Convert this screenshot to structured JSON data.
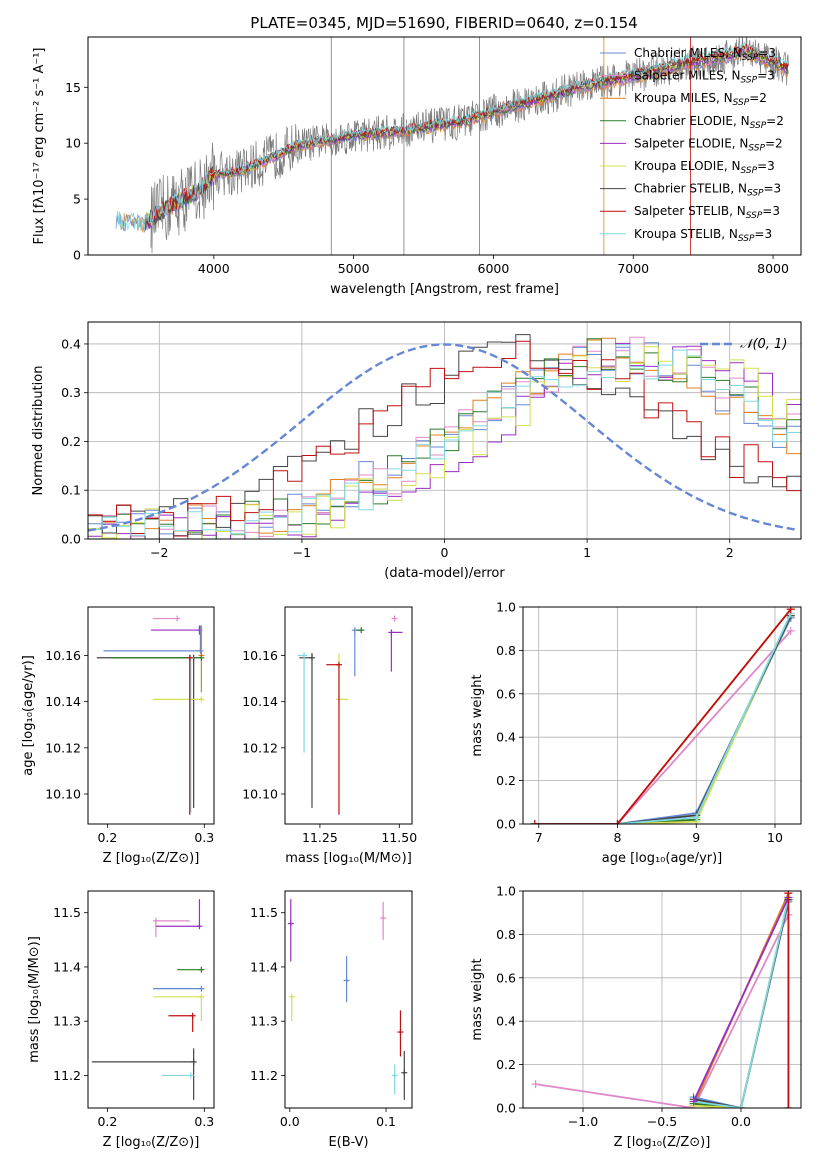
{
  "figure": {
    "title": "PLATE=0345, MJD=51690, FIBERID=0640, z=0.154"
  },
  "colors": {
    "chabrier_miles": "#6688d4",
    "salpeter_miles": "#e088c8",
    "kroupa_miles": "#e08020",
    "chabrier_elodie": "#2c7a2c",
    "salpeter_elodie": "#9a2fc0",
    "kroupa_elodie": "#d4e050",
    "chabrier_stelib": "#444444",
    "salpeter_stelib": "#c01010",
    "kroupa_stelib": "#80d8e0",
    "data_gray": "#7a7a7a",
    "normal_curve": "#6688d4"
  },
  "legend_spectrum": [
    {
      "label": "Chabrier MILES, N",
      "sub": "SSP",
      "suffix": "=3",
      "color_key": "chabrier_miles"
    },
    {
      "label": "Salpeter MILES, N",
      "sub": "SSP",
      "suffix": "=3",
      "color_key": "salpeter_miles"
    },
    {
      "label": "Kroupa MILES, N",
      "sub": "SSP",
      "suffix": "=2",
      "color_key": "kroupa_miles"
    },
    {
      "label": "Chabrier ELODIE, N",
      "sub": "SSP",
      "suffix": "=2",
      "color_key": "chabrier_elodie"
    },
    {
      "label": "Salpeter ELODIE, N",
      "sub": "SSP",
      "suffix": "=2",
      "color_key": "salpeter_elodie"
    },
    {
      "label": "Kroupa ELODIE, N",
      "sub": "SSP",
      "suffix": "=3",
      "color_key": "kroupa_elodie"
    },
    {
      "label": "Chabrier STELIB, N",
      "sub": "SSP",
      "suffix": "=3",
      "color_key": "chabrier_stelib"
    },
    {
      "label": "Salpeter STELIB, N",
      "sub": "SSP",
      "suffix": "=3",
      "color_key": "salpeter_stelib"
    },
    {
      "label": "Kroupa STELIB, N",
      "sub": "SSP",
      "suffix": "=3",
      "color_key": "kroupa_stelib"
    }
  ],
  "chart_data": [
    {
      "id": "spectrum",
      "type": "line",
      "xlabel": "wavelength [Angstrom, rest frame]",
      "ylabel": "Flux [fλ10⁻¹⁷ erg cm⁻² s⁻¹ A⁻¹]",
      "xlim": [
        3100,
        8200
      ],
      "ylim": [
        0,
        19.5
      ],
      "xticks": [
        4000,
        5000,
        6000,
        7000,
        8000
      ],
      "yticks": [
        0,
        5,
        10,
        15
      ],
      "grid": false,
      "legend": "right",
      "continuum_points": [
        [
          3300,
          3.1
        ],
        [
          3500,
          2.8
        ],
        [
          3700,
          4.5
        ],
        [
          3900,
          5.8
        ],
        [
          4000,
          7.2
        ],
        [
          4200,
          7.5
        ],
        [
          4400,
          8.6
        ],
        [
          4600,
          9.8
        ],
        [
          4800,
          10.2
        ],
        [
          5000,
          10.7
        ],
        [
          5200,
          10.9
        ],
        [
          5400,
          11.2
        ],
        [
          5600,
          11.6
        ],
        [
          5800,
          12.0
        ],
        [
          6000,
          12.8
        ],
        [
          6200,
          13.5
        ],
        [
          6400,
          14.2
        ],
        [
          6600,
          14.9
        ],
        [
          6800,
          15.5
        ],
        [
          7000,
          16.0
        ],
        [
          7200,
          16.6
        ],
        [
          7400,
          17.2
        ],
        [
          7600,
          17.6
        ],
        [
          7800,
          18.3
        ],
        [
          8000,
          17.2
        ],
        [
          8100,
          16.6
        ]
      ]
    },
    {
      "id": "residuals",
      "type": "histogram",
      "xlabel": "(data-model)/error",
      "ylabel": "Normed distribution",
      "xlim": [
        -2.5,
        2.5
      ],
      "ylim": [
        0,
        0.445
      ],
      "xticks": [
        -2,
        -1,
        0,
        1,
        2
      ],
      "yticks": [
        0.0,
        0.1,
        0.2,
        0.3,
        0.4
      ],
      "grid": true,
      "legend": "top-right",
      "legend_label": "𝒩(0, 1)",
      "normal": {
        "mean": 0,
        "sigma": 1
      }
    },
    {
      "id": "age-vs-Z",
      "type": "scatter",
      "xlabel": "Z [log₁₀(Z/Z⊙)]",
      "ylabel": "age  [log₁₀(age/yr)]",
      "xlim": [
        0.18,
        0.31
      ],
      "ylim": [
        10.087,
        10.181
      ],
      "xticks": [
        0.2,
        0.3
      ],
      "yticks": [
        10.1,
        10.12,
        10.14,
        10.16
      ],
      "grid": false,
      "points": [
        {
          "key": "salpeter_miles",
          "x": 0.272,
          "y": 10.176,
          "xerr": [
            0.025,
            0.0
          ],
          "yerr": [
            0.0,
            0.0
          ]
        },
        {
          "key": "salpeter_elodie",
          "x": 0.295,
          "y": 10.171,
          "xerr": [
            0.05,
            0.0
          ],
          "yerr": [
            0.002,
            0.002
          ]
        },
        {
          "key": "chabrier_miles",
          "x": 0.296,
          "y": 10.162,
          "xerr": [
            0.1,
            0.0
          ],
          "yerr": [
            0.0,
            0.011
          ]
        },
        {
          "key": "chabrier_stelib",
          "x": 0.289,
          "y": 10.159,
          "xerr": [
            0.1,
            0.0
          ],
          "yerr": [
            0.065,
            0.0
          ]
        },
        {
          "key": "kroupa_miles",
          "x": 0.297,
          "y": 10.16,
          "xerr": [
            0.0,
            0.0
          ],
          "yerr": [
            0.016,
            0.013
          ]
        },
        {
          "key": "chabrier_elodie",
          "x": 0.297,
          "y": 10.159,
          "xerr": [
            0.095,
            0.0
          ],
          "yerr": [
            0.0,
            0.0
          ]
        },
        {
          "key": "kroupa_elodie",
          "x": 0.297,
          "y": 10.141,
          "xerr": [
            0.05,
            0.0
          ],
          "yerr": [
            0.0,
            0.0
          ]
        },
        {
          "key": "kroupa_stelib",
          "x": 0.286,
          "y": 10.159,
          "xerr": [
            0.0,
            0.0
          ],
          "yerr": [
            0.067,
            0.0
          ]
        },
        {
          "key": "salpeter_stelib",
          "x": 0.285,
          "y": 10.159,
          "xerr": [
            0.0,
            0.0
          ],
          "yerr": [
            0.068,
            0.0
          ]
        }
      ]
    },
    {
      "id": "age-vs-mass",
      "type": "scatter",
      "xlabel": "mass [log₁₀(M/M⊙)]",
      "ylabel": "",
      "xlim": [
        11.14,
        11.54
      ],
      "ylim": [
        10.087,
        10.181
      ],
      "xticks": [
        11.25,
        11.5
      ],
      "yticks": [
        10.1,
        10.12,
        10.14,
        10.16
      ],
      "grid": false,
      "points": [
        {
          "key": "salpeter_miles",
          "x": 11.485,
          "y": 10.176,
          "xerr": [
            0.0,
            0.0
          ],
          "yerr": [
            0.0,
            0.0
          ]
        },
        {
          "key": "salpeter_elodie",
          "x": 11.475,
          "y": 10.17,
          "xerr": [
            0.0,
            0.035
          ],
          "yerr": [
            0.017,
            0.0
          ]
        },
        {
          "key": "chabrier_miles",
          "x": 11.36,
          "y": 10.171,
          "xerr": [
            0.0,
            0.03
          ],
          "yerr": [
            0.02,
            0.0
          ]
        },
        {
          "key": "chabrier_elodie",
          "x": 11.38,
          "y": 10.171,
          "xerr": [
            0.015,
            0.0
          ],
          "yerr": [
            0.0,
            0.0
          ]
        },
        {
          "key": "kroupa_elodie",
          "x": 11.31,
          "y": 10.141,
          "xerr": [
            0.0,
            0.03
          ],
          "yerr": [
            0.0,
            0.02
          ]
        },
        {
          "key": "chabrier_stelib",
          "x": 11.225,
          "y": 10.159,
          "xerr": [
            0.04,
            0.0
          ],
          "yerr": [
            0.065,
            0.002
          ]
        },
        {
          "key": "kroupa_stelib",
          "x": 11.2,
          "y": 10.16,
          "xerr": [
            0.02,
            0.0
          ],
          "yerr": [
            0.042,
            0.0
          ]
        },
        {
          "key": "salpeter_stelib",
          "x": 11.31,
          "y": 10.156,
          "xerr": [
            0.04,
            0.0
          ],
          "yerr": [
            0.065,
            0.0
          ]
        }
      ]
    },
    {
      "id": "mass-weight-vs-age",
      "type": "line",
      "xlabel": "age  [log₁₀(age/yr)]",
      "ylabel": "mass weight",
      "xlim": [
        6.8,
        10.33
      ],
      "ylim": [
        0,
        1.0
      ],
      "xticks": [
        7,
        8,
        9,
        10
      ],
      "yticks": [
        0.0,
        0.2,
        0.4,
        0.6,
        0.8,
        1.0
      ],
      "grid": true,
      "series": [
        {
          "key": "kroupa_miles",
          "x": [
            6.95,
            8.0,
            10.2
          ],
          "y": [
            0.0,
            0.0,
            0.99
          ]
        },
        {
          "key": "chabrier_miles",
          "x": [
            6.95,
            8.0,
            9.0,
            10.2
          ],
          "y": [
            0.0,
            0.0,
            0.05,
            0.95
          ]
        },
        {
          "key": "salpeter_miles",
          "x": [
            6.95,
            8.0,
            10.2
          ],
          "y": [
            0.0,
            0.0,
            0.89
          ]
        },
        {
          "key": "chabrier_elodie",
          "x": [
            6.95,
            8.0,
            9.0,
            10.2
          ],
          "y": [
            0.0,
            0.0,
            0.02,
            0.96
          ]
        },
        {
          "key": "kroupa_elodie",
          "x": [
            6.95,
            8.0,
            9.0,
            10.2
          ],
          "y": [
            0.0,
            0.0,
            0.01,
            0.97
          ]
        },
        {
          "key": "chabrier_stelib",
          "x": [
            6.95,
            8.0,
            9.0,
            10.2
          ],
          "y": [
            0.0,
            0.0,
            0.04,
            0.96
          ]
        },
        {
          "key": "kroupa_stelib",
          "x": [
            6.95,
            8.0,
            9.0,
            10.2
          ],
          "y": [
            0.0,
            0.0,
            0.03,
            0.97
          ]
        },
        {
          "key": "salpeter_stelib",
          "x": [
            6.95,
            8.0,
            10.2
          ],
          "y": [
            0.0,
            0.0,
            0.99
          ]
        }
      ]
    },
    {
      "id": "mass-vs-Z",
      "type": "scatter",
      "xlabel": "Z [log₁₀(Z/Z⊙)]",
      "ylabel": "mass [log₁₀(M/M⊙)]",
      "xlim": [
        0.18,
        0.31
      ],
      "ylim": [
        11.14,
        11.54
      ],
      "xticks": [
        0.2,
        0.3
      ],
      "yticks": [
        11.2,
        11.3,
        11.4,
        11.5
      ],
      "grid": false,
      "points": [
        {
          "key": "salpeter_miles",
          "x": 0.25,
          "y": 11.485,
          "xerr": [
            0.0,
            0.035
          ],
          "yerr": [
            0.03,
            0.0
          ]
        },
        {
          "key": "salpeter_elodie",
          "x": 0.295,
          "y": 11.475,
          "xerr": [
            0.045,
            0.0
          ],
          "yerr": [
            0.0,
            0.05
          ]
        },
        {
          "key": "chabrier_elodie",
          "x": 0.297,
          "y": 11.395,
          "xerr": [
            0.025,
            0.0
          ],
          "yerr": [
            0.0,
            0.0
          ]
        },
        {
          "key": "chabrier_miles",
          "x": 0.297,
          "y": 11.36,
          "xerr": [
            0.05,
            0.0
          ],
          "yerr": [
            0.0,
            0.0
          ]
        },
        {
          "key": "kroupa_elodie",
          "x": 0.297,
          "y": 11.345,
          "xerr": [
            0.05,
            0.0
          ],
          "yerr": [
            0.045,
            0.0
          ]
        },
        {
          "key": "salpeter_stelib",
          "x": 0.288,
          "y": 11.31,
          "xerr": [
            0.025,
            0.0
          ],
          "yerr": [
            0.03,
            0.0
          ]
        },
        {
          "key": "chabrier_stelib",
          "x": 0.289,
          "y": 11.225,
          "xerr": [
            0.105,
            0.0
          ],
          "yerr": [
            0.07,
            0.025
          ]
        },
        {
          "key": "kroupa_stelib",
          "x": 0.286,
          "y": 11.2,
          "xerr": [
            0.03,
            0.0
          ],
          "yerr": [
            0.0,
            0.0
          ]
        }
      ]
    },
    {
      "id": "mass-vs-ebv",
      "type": "scatter",
      "xlabel": "E(B-V)",
      "ylabel": "",
      "xlim": [
        -0.005,
        0.127
      ],
      "ylim": [
        11.14,
        11.54
      ],
      "xticks": [
        0.0,
        0.1
      ],
      "yticks": [
        11.2,
        11.3,
        11.4,
        11.5
      ],
      "grid": false,
      "points": [
        {
          "key": "salpeter_elodie",
          "x": 0.001,
          "y": 11.48,
          "xerr": [
            0.0,
            0.0
          ],
          "yerr": [
            0.07,
            0.045
          ]
        },
        {
          "key": "kroupa_elodie",
          "x": 0.002,
          "y": 11.345,
          "xerr": [
            0.0,
            0.0
          ],
          "yerr": [
            0.045,
            0.0
          ]
        },
        {
          "key": "salpeter_miles",
          "x": 0.097,
          "y": 11.49,
          "xerr": [
            0.0,
            0.0
          ],
          "yerr": [
            0.04,
            0.03
          ]
        },
        {
          "key": "chabrier_miles",
          "x": 0.059,
          "y": 11.375,
          "xerr": [
            0.0,
            0.0
          ],
          "yerr": [
            0.04,
            0.045
          ]
        },
        {
          "key": "salpeter_stelib",
          "x": 0.115,
          "y": 11.28,
          "xerr": [
            0.0,
            0.0
          ],
          "yerr": [
            0.045,
            0.04
          ]
        },
        {
          "key": "kroupa_stelib",
          "x": 0.109,
          "y": 11.2,
          "xerr": [
            0.0,
            0.0
          ],
          "yerr": [
            0.035,
            0.02
          ]
        },
        {
          "key": "chabrier_stelib",
          "x": 0.119,
          "y": 11.205,
          "xerr": [
            0.0,
            0.0
          ],
          "yerr": [
            0.05,
            0.04
          ]
        }
      ]
    },
    {
      "id": "mass-weight-vs-Z",
      "type": "line",
      "xlabel": "Z [log₁₀(Z/Z⊙)]",
      "ylabel": "mass weight",
      "xlim": [
        -1.38,
        0.38
      ],
      "ylim": [
        0,
        1.0
      ],
      "xticks": [
        -1.0,
        -0.5,
        0.0
      ],
      "yticks": [
        0.0,
        0.2,
        0.4,
        0.6,
        0.8,
        1.0
      ],
      "grid": true,
      "series": [
        {
          "key": "salpeter_miles",
          "x": [
            -1.3,
            -0.3,
            0.3
          ],
          "y": [
            0.11,
            0.0,
            0.89
          ]
        },
        {
          "key": "kroupa_miles",
          "x": [
            -0.3,
            0.3,
            0.3
          ],
          "y": [
            0.01,
            0.99,
            0.0
          ]
        },
        {
          "key": "chabrier_miles",
          "x": [
            -0.3,
            0.0,
            0.3
          ],
          "y": [
            0.05,
            0.0,
            0.95
          ]
        },
        {
          "key": "chabrier_elodie",
          "x": [
            -0.3,
            0.0,
            0.3
          ],
          "y": [
            0.02,
            0.0,
            0.96
          ]
        },
        {
          "key": "kroupa_elodie",
          "x": [
            -0.3,
            0.0,
            0.3
          ],
          "y": [
            0.01,
            0.0,
            0.97
          ]
        },
        {
          "key": "chabrier_stelib",
          "x": [
            -0.3,
            0.0,
            0.3
          ],
          "y": [
            0.04,
            0.0,
            0.96
          ]
        },
        {
          "key": "kroupa_stelib",
          "x": [
            -0.3,
            0.0,
            0.3
          ],
          "y": [
            0.03,
            0.0,
            0.97
          ]
        },
        {
          "key": "salpeter_elodie",
          "x": [
            -0.3,
            0.3
          ],
          "y": [
            0.03,
            0.97
          ]
        },
        {
          "key": "salpeter_stelib",
          "x": [
            0.3,
            0.3
          ],
          "y": [
            0.0,
            0.99
          ]
        }
      ]
    }
  ]
}
